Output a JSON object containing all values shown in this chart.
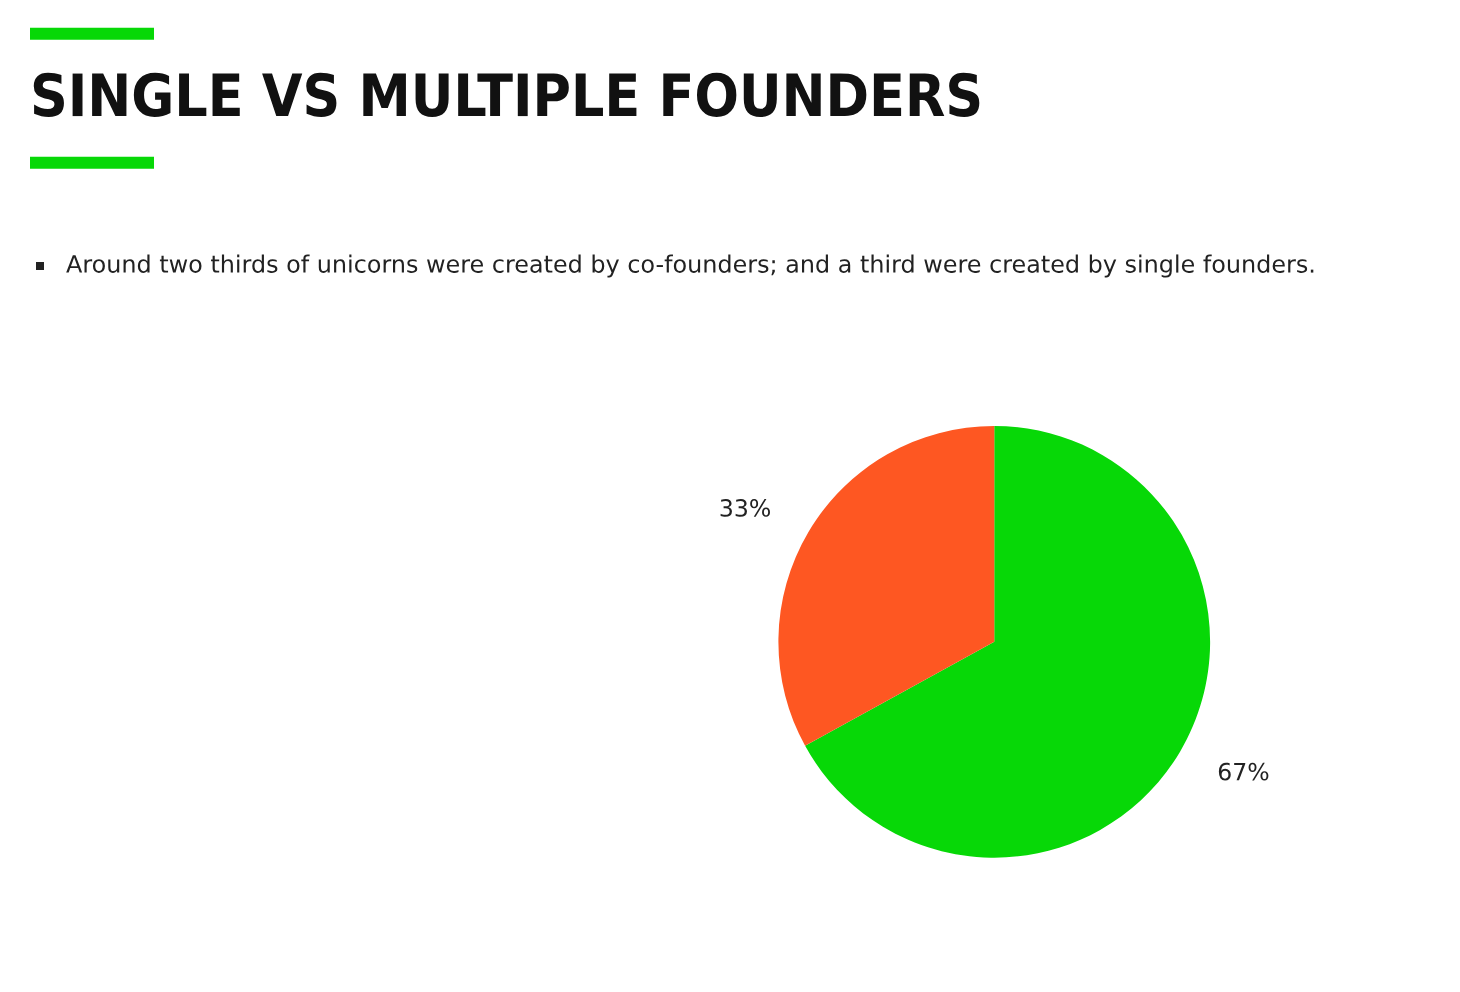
{
  "chart_data": {
    "type": "pie",
    "title": "SINGLE VS MULTIPLE FOUNDERS",
    "subtitle": "Around two thirds of unicorns were created by co-founders; and a third were created by single founders.",
    "categories": [
      null,
      null
    ],
    "values": [
      67,
      33
    ],
    "value_labels": [
      "67%",
      "33%"
    ],
    "colors": [
      "#07d807",
      "#fe5722"
    ],
    "legend": false
  }
}
